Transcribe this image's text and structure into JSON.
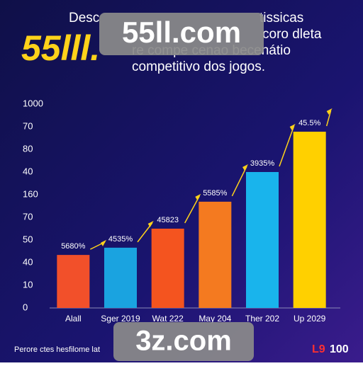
{
  "header": {
    "fragments": [
      "Desc",
      "tissicas",
      "coro dleta",
      "re compe cenao becenátio",
      "competitivo dos jogos."
    ],
    "logo": "55lll.",
    "watermark": "55ll.com"
  },
  "chart_data": {
    "type": "bar",
    "categories": [
      "Alall",
      "Sger 2019",
      "Wat 222",
      "May 204",
      "Ther 202",
      "Up 2029"
    ],
    "values": [
      2.34,
      2.66,
      3.5,
      4.69,
      6.0,
      7.78
    ],
    "colors": [
      "#f2502a",
      "#1aa3e0",
      "#f4541f",
      "#f47a20",
      "#19b4ec",
      "#ffd000"
    ],
    "annotations": [
      "5680%",
      "4535%",
      "45823",
      "5585%",
      "3935%",
      "45.5%"
    ],
    "ylim": [
      0,
      9
    ],
    "yticks": [
      0,
      {
        "value": 1,
        "label": "10"
      },
      {
        "value": 2,
        "label": "40"
      },
      {
        "value": 3,
        "label": "50"
      },
      {
        "value": 4,
        "label": "70"
      },
      {
        "value": 5,
        "label": "160"
      },
      {
        "value": 6,
        "label": "40"
      },
      {
        "value": 7,
        "label": "80"
      },
      {
        "value": 8,
        "label": "70"
      },
      {
        "value": 9,
        "label": "1000"
      }
    ]
  },
  "footer": {
    "caption": "Perore ctes hesfilome lat",
    "brand_a": "L9",
    "brand_b": "100",
    "watermark": "3z.com"
  }
}
